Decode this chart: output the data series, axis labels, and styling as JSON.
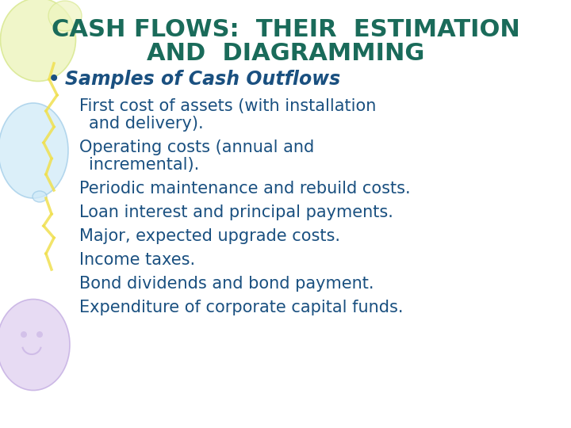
{
  "title_line1": "CASH FLOWS:  THEIR  ESTIMATION",
  "title_line2": "AND  DIAGRAMMING",
  "title_color": "#1a6b5a",
  "background_color": "#ffffff",
  "bullet_header": "Samples of Cash Outflows",
  "bullet_header_color": "#1a5080",
  "bullet_item_color": "#1a5080",
  "title_fontsize": 22,
  "bullet_header_fontsize": 17,
  "bullet_item_fontsize": 15,
  "balloon1_color": "#eef5c0",
  "balloon1_edge": "#d8e890",
  "balloon2_color": "#d0eaf8",
  "balloon2_edge": "#a0cce8",
  "balloon3_color": "#e0d0f0",
  "balloon3_edge": "#c0a8e0",
  "ribbon_color": "#f0e050"
}
